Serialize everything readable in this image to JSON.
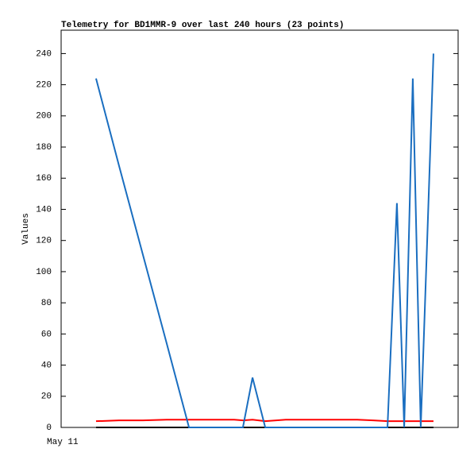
{
  "chart_data": {
    "type": "line",
    "title": "Telemetry for BD1MMR-9 over last 240 hours (23 points)",
    "y_label": "Values",
    "x": [
      21.1,
      35.0,
      49.4,
      63.8,
      77.3,
      92.6,
      104.6,
      109.9,
      115.7,
      123.4,
      135.8,
      150.2,
      164.6,
      179.0,
      188.6,
      197.3,
      203.0,
      207.4,
      212.6,
      217.4,
      221.3,
      223.2,
      225.1
    ],
    "xlim": [
      0,
      240
    ],
    "xticks": [
      {
        "value": 0,
        "label": "May 11"
      }
    ],
    "ylim": [
      0,
      255
    ],
    "yticks": [
      0,
      20,
      40,
      60,
      80,
      100,
      120,
      140,
      160,
      180,
      200,
      220,
      240
    ],
    "series": [
      {
        "color": "#000000",
        "values": [
          0,
          0,
          0,
          0,
          0,
          0,
          0,
          0,
          0,
          0,
          0,
          0,
          0,
          0,
          0,
          0,
          0,
          0,
          0,
          0,
          0,
          0,
          0
        ]
      },
      {
        "color": "#ff0000",
        "values": [
          4,
          4.5,
          4.5,
          5,
          5,
          5,
          5,
          4.5,
          5,
          4,
          5,
          5,
          5,
          5,
          4.5,
          4,
          4,
          4,
          4,
          4,
          4,
          4,
          4
        ]
      },
      {
        "color": "#1a6ec0",
        "values": [
          224,
          168,
          111,
          54,
          0,
          0,
          0,
          0,
          32,
          0,
          0,
          0,
          0,
          0,
          0,
          0,
          144,
          0,
          224,
          0,
          120,
          180,
          240
        ]
      }
    ]
  }
}
